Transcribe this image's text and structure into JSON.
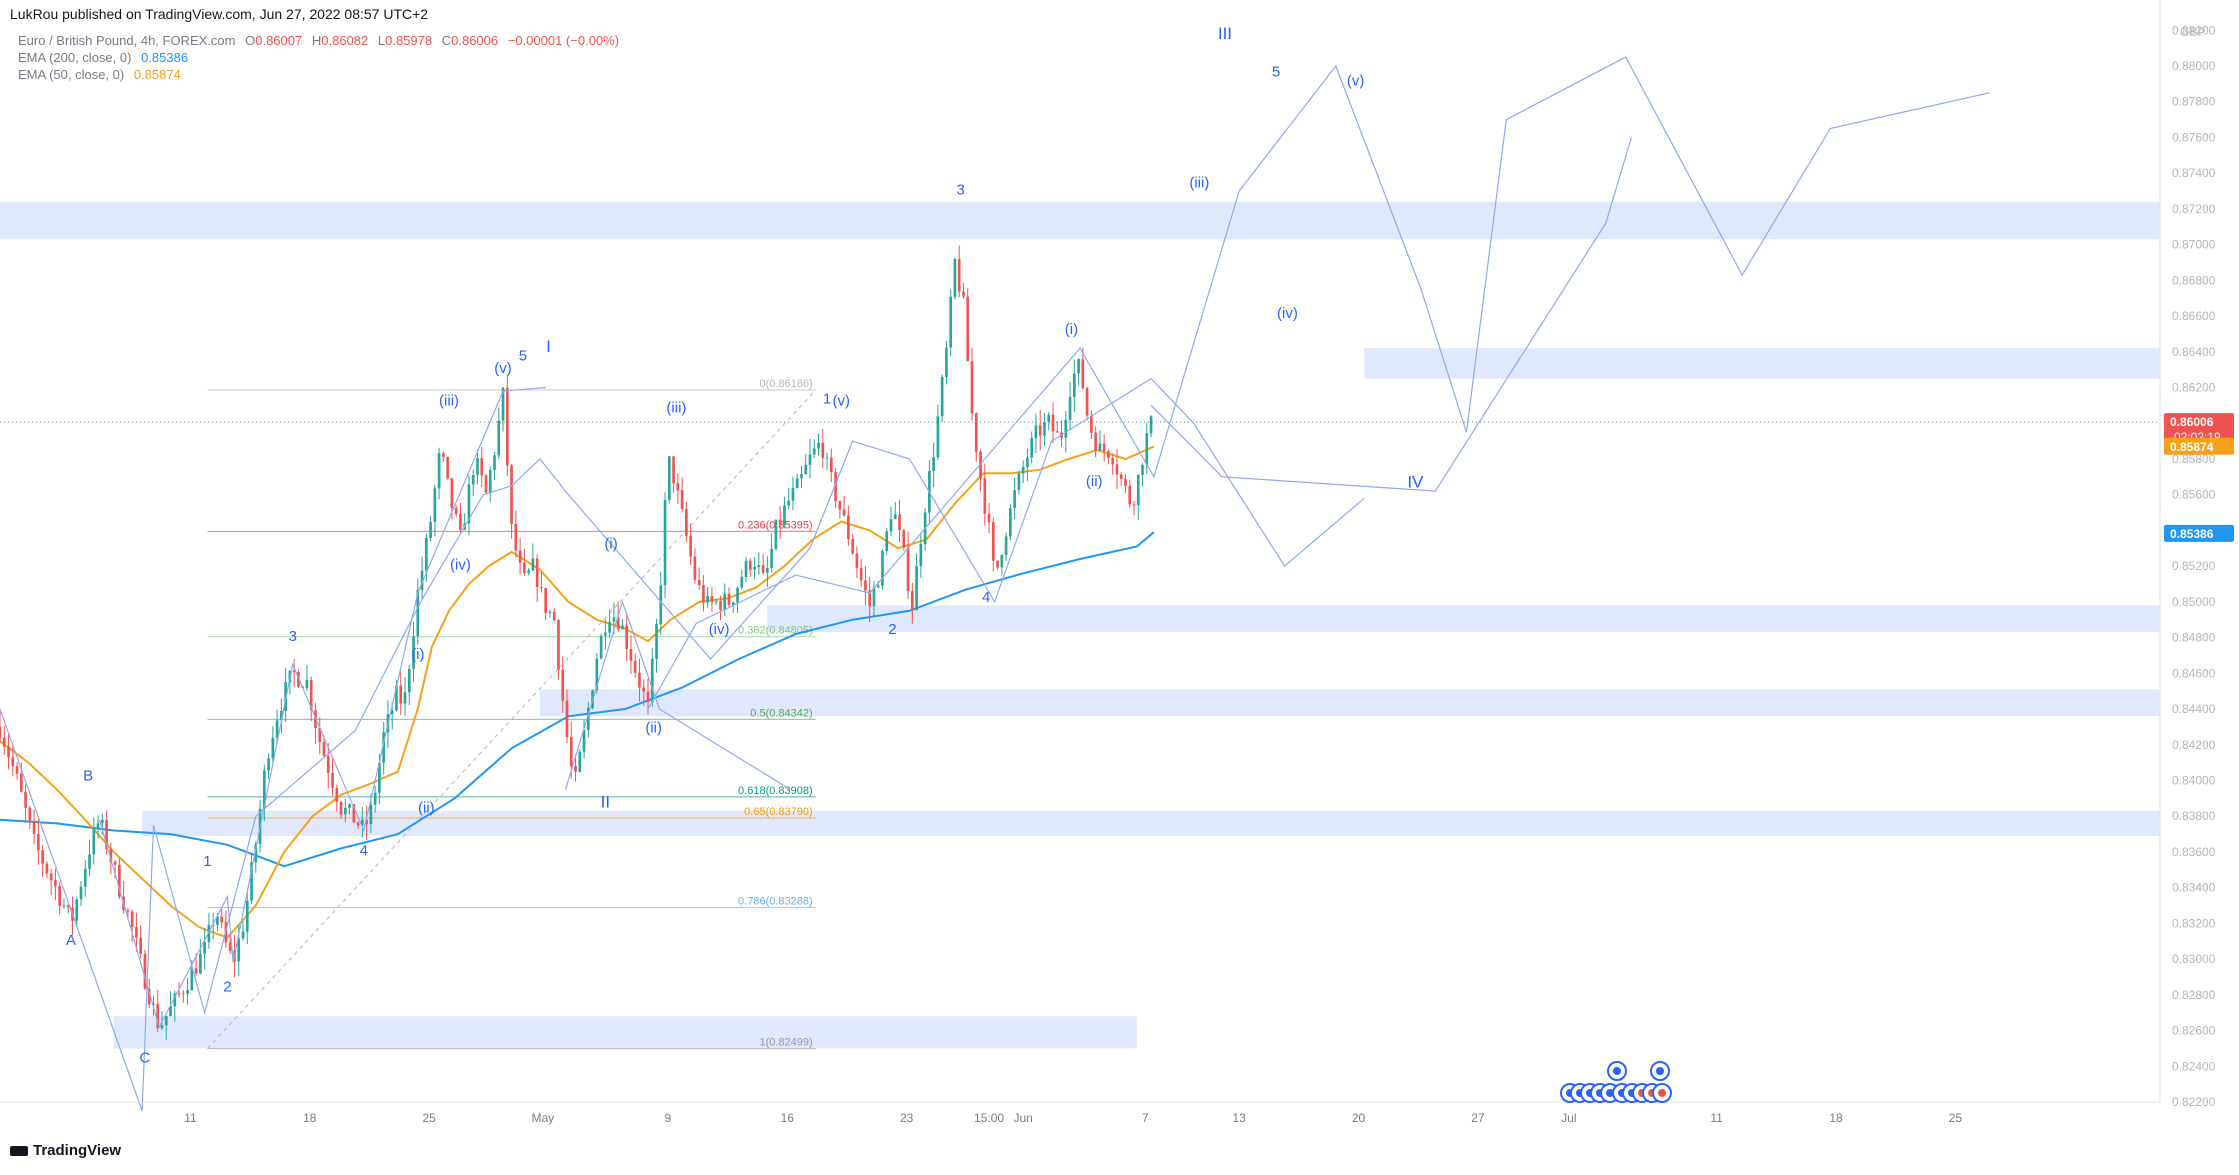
{
  "header": {
    "published_by": "LukRou published on TradingView.com, Jun 27, 2022 08:57 UTC+2"
  },
  "legend": {
    "symbol_line": "Euro / British Pound, 4h, FOREX.com",
    "ohlc": {
      "o_label": "O",
      "o": "0.86007",
      "h_label": "H",
      "h": "0.86082",
      "l_label": "L",
      "l": "0.85978",
      "c_label": "C",
      "c": "0.86006",
      "chg": "−0.00001 (−0.00%)"
    },
    "ema200": {
      "label": "EMA (200, close, 0)",
      "value": "0.85386",
      "color": "#2196f3"
    },
    "ema50": {
      "label": "EMA (50, close, 0)",
      "value": "0.85874",
      "color": "#f7a11a"
    }
  },
  "footer": {
    "logo_text": "TradingView"
  },
  "colors": {
    "up": "#26a69a",
    "down": "#ef5350",
    "zone": "#c7d5fb",
    "wave": "#8fa8f0",
    "label": "#2962ff",
    "ema200": "#2196f3",
    "ema50": "#f7a11a",
    "axis_text": "#b2b5be"
  },
  "chart_data": {
    "type": "candlestick",
    "currency": "GBP",
    "y_range": [
      0.822,
      0.8828
    ],
    "y_ticks": [
      "0.88200",
      "0.88000",
      "0.87800",
      "0.87600",
      "0.87400",
      "0.87200",
      "0.87000",
      "0.86800",
      "0.86600",
      "0.86400",
      "0.86200",
      "0.86000",
      "0.85800",
      "0.85600",
      "0.85400",
      "0.85200",
      "0.85000",
      "0.84800",
      "0.84600",
      "0.84400",
      "0.84200",
      "0.84000",
      "0.83800",
      "0.83600",
      "0.83400",
      "0.83200",
      "0.83000",
      "0.82800",
      "0.82600",
      "0.82400",
      "0.82200"
    ],
    "x_ticks": [
      {
        "label": "11",
        "t": 67
      },
      {
        "label": "18",
        "t": 109
      },
      {
        "label": "25",
        "t": 151
      },
      {
        "label": "May",
        "t": 191
      },
      {
        "label": "9",
        "t": 235
      },
      {
        "label": "16",
        "t": 277
      },
      {
        "label": "23",
        "t": 319
      },
      {
        "label": "15:00",
        "t": 348
      },
      {
        "label": "Jun",
        "t": 360
      },
      {
        "label": "7",
        "t": 403
      },
      {
        "label": "13",
        "t": 436
      },
      {
        "label": "20",
        "t": 478
      },
      {
        "label": "27",
        "t": 520
      },
      {
        "label": "Jul",
        "t": 552
      },
      {
        "label": "11",
        "t": 604
      },
      {
        "label": "18",
        "t": 646
      },
      {
        "label": "25",
        "t": 688
      }
    ],
    "price_tags": [
      {
        "value": "0.86006",
        "sub": "02:02:19",
        "bg": "#ef5350",
        "y": 0.86006
      },
      {
        "value": "0.85874",
        "bg": "#f7a11a",
        "y": 0.85874
      },
      {
        "value": "0.85386",
        "bg": "#2196f3",
        "y": 0.85386
      }
    ],
    "current_price": 0.86006,
    "waypoints": [
      [
        0,
        0.843
      ],
      [
        6,
        0.84
      ],
      [
        12,
        0.8365
      ],
      [
        18,
        0.8345
      ],
      [
        22,
        0.8332
      ],
      [
        25,
        0.832
      ],
      [
        28,
        0.834
      ],
      [
        32,
        0.8365
      ],
      [
        35,
        0.8378
      ],
      [
        38,
        0.8362
      ],
      [
        42,
        0.834
      ],
      [
        46,
        0.832
      ],
      [
        50,
        0.8295
      ],
      [
        54,
        0.8272
      ],
      [
        56,
        0.8262
      ],
      [
        60,
        0.8272
      ],
      [
        66,
        0.8288
      ],
      [
        72,
        0.8305
      ],
      [
        76,
        0.8328
      ],
      [
        79,
        0.831
      ],
      [
        82,
        0.8298
      ],
      [
        86,
        0.8322
      ],
      [
        90,
        0.8365
      ],
      [
        94,
        0.8415
      ],
      [
        98,
        0.844
      ],
      [
        103,
        0.846
      ],
      [
        108,
        0.8455
      ],
      [
        112,
        0.8425
      ],
      [
        116,
        0.8405
      ],
      [
        120,
        0.8385
      ],
      [
        125,
        0.8378
      ],
      [
        128,
        0.8372
      ],
      [
        131,
        0.8385
      ],
      [
        135,
        0.8425
      ],
      [
        140,
        0.845
      ],
      [
        142,
        0.844
      ],
      [
        147,
        0.8505
      ],
      [
        151,
        0.854
      ],
      [
        155,
        0.8585
      ],
      [
        158,
        0.856
      ],
      [
        162,
        0.8535
      ],
      [
        167,
        0.858
      ],
      [
        171,
        0.856
      ],
      [
        174,
        0.8585
      ],
      [
        177,
        0.8615
      ],
      [
        180,
        0.854
      ],
      [
        184,
        0.851
      ],
      [
        188,
        0.852
      ],
      [
        191,
        0.85
      ],
      [
        195,
        0.849
      ],
      [
        199,
        0.843
      ],
      [
        202,
        0.8395
      ],
      [
        206,
        0.843
      ],
      [
        210,
        0.847
      ],
      [
        214,
        0.8495
      ],
      [
        218,
        0.849
      ],
      [
        222,
        0.847
      ],
      [
        226,
        0.845
      ],
      [
        228,
        0.844
      ],
      [
        232,
        0.85
      ],
      [
        235,
        0.858
      ],
      [
        237,
        0.857
      ],
      [
        241,
        0.854
      ],
      [
        245,
        0.851
      ],
      [
        249,
        0.8498
      ],
      [
        253,
        0.85
      ],
      [
        257,
        0.85
      ],
      [
        261,
        0.8515
      ],
      [
        265,
        0.8525
      ],
      [
        269,
        0.851
      ],
      [
        273,
        0.854
      ],
      [
        277,
        0.8555
      ],
      [
        281,
        0.8565
      ],
      [
        285,
        0.858
      ],
      [
        289,
        0.859
      ],
      [
        291,
        0.8575
      ],
      [
        295,
        0.8555
      ],
      [
        299,
        0.8535
      ],
      [
        303,
        0.8512
      ],
      [
        306,
        0.8498
      ],
      [
        310,
        0.852
      ],
      [
        314,
        0.8555
      ],
      [
        318,
        0.8525
      ],
      [
        321,
        0.8498
      ],
      [
        325,
        0.855
      ],
      [
        329,
        0.859
      ],
      [
        333,
        0.864
      ],
      [
        336,
        0.869
      ],
      [
        339,
        0.8665
      ],
      [
        342,
        0.8605
      ],
      [
        345,
        0.857
      ],
      [
        348,
        0.854
      ],
      [
        350,
        0.8512
      ],
      [
        353,
        0.8535
      ],
      [
        357,
        0.856
      ],
      [
        361,
        0.858
      ],
      [
        365,
        0.8595
      ],
      [
        369,
        0.86
      ],
      [
        373,
        0.859
      ],
      [
        377,
        0.8625
      ],
      [
        380,
        0.8632
      ],
      [
        383,
        0.86
      ],
      [
        387,
        0.8585
      ],
      [
        391,
        0.8585
      ],
      [
        394,
        0.857
      ],
      [
        398,
        0.8555
      ],
      [
        400,
        0.8565
      ],
      [
        403,
        0.859
      ],
      [
        406,
        0.8603
      ]
    ],
    "ema50_points": [
      [
        0,
        0.8422
      ],
      [
        10,
        0.841
      ],
      [
        20,
        0.8395
      ],
      [
        30,
        0.8378
      ],
      [
        40,
        0.836
      ],
      [
        50,
        0.8345
      ],
      [
        60,
        0.833
      ],
      [
        70,
        0.8318
      ],
      [
        80,
        0.8312
      ],
      [
        90,
        0.833
      ],
      [
        100,
        0.836
      ],
      [
        110,
        0.838
      ],
      [
        120,
        0.8392
      ],
      [
        130,
        0.8398
      ],
      [
        140,
        0.8405
      ],
      [
        147,
        0.844
      ],
      [
        152,
        0.8475
      ],
      [
        158,
        0.8495
      ],
      [
        165,
        0.851
      ],
      [
        172,
        0.852
      ],
      [
        180,
        0.8528
      ],
      [
        190,
        0.8518
      ],
      [
        200,
        0.85
      ],
      [
        210,
        0.849
      ],
      [
        220,
        0.8485
      ],
      [
        228,
        0.8478
      ],
      [
        236,
        0.849
      ],
      [
        246,
        0.85
      ],
      [
        256,
        0.8502
      ],
      [
        266,
        0.8508
      ],
      [
        276,
        0.852
      ],
      [
        286,
        0.8535
      ],
      [
        296,
        0.8545
      ],
      [
        306,
        0.854
      ],
      [
        316,
        0.853
      ],
      [
        326,
        0.8535
      ],
      [
        336,
        0.8555
      ],
      [
        346,
        0.8572
      ],
      [
        356,
        0.8572
      ],
      [
        366,
        0.8574
      ],
      [
        376,
        0.858
      ],
      [
        386,
        0.8585
      ],
      [
        396,
        0.858
      ],
      [
        406,
        0.8587
      ]
    ],
    "ema200_points": [
      [
        0,
        0.8378
      ],
      [
        20,
        0.8376
      ],
      [
        40,
        0.8372
      ],
      [
        60,
        0.837
      ],
      [
        80,
        0.8364
      ],
      [
        100,
        0.8352
      ],
      [
        120,
        0.8362
      ],
      [
        140,
        0.837
      ],
      [
        160,
        0.839
      ],
      [
        180,
        0.8418
      ],
      [
        200,
        0.8436
      ],
      [
        220,
        0.844
      ],
      [
        240,
        0.8452
      ],
      [
        260,
        0.8468
      ],
      [
        280,
        0.8482
      ],
      [
        300,
        0.849
      ],
      [
        320,
        0.8495
      ],
      [
        340,
        0.8507
      ],
      [
        360,
        0.8516
      ],
      [
        380,
        0.8524
      ],
      [
        400,
        0.8531
      ],
      [
        406,
        0.8539
      ]
    ],
    "zones": [
      {
        "t0": -10,
        "t1": 760,
        "lo": 0.8703,
        "hi": 0.8724
      },
      {
        "t0": 480,
        "t1": 760,
        "lo": 0.8625,
        "hi": 0.8642
      },
      {
        "t0": 270,
        "t1": 760,
        "lo": 0.8483,
        "hi": 0.8498
      },
      {
        "t0": 190,
        "t1": 760,
        "lo": 0.8436,
        "hi": 0.8451
      },
      {
        "t0": 50,
        "t1": 760,
        "lo": 0.8369,
        "hi": 0.8383
      },
      {
        "t0": 40,
        "t1": 400,
        "lo": 0.825,
        "hi": 0.8268
      }
    ],
    "fib": {
      "t0": 73,
      "t1": 287,
      "label_t": 287,
      "levels": [
        {
          "label": "0(0.86186)",
          "y": 0.86186,
          "color": "#b2b5be"
        },
        {
          "label": "0.236(0.85395)",
          "y": 0.85395,
          "color": "#f23645"
        },
        {
          "label": "0.382(0.84805)",
          "y": 0.84805,
          "color": "#81c784"
        },
        {
          "label": "0.5(0.84342)",
          "y": 0.84342,
          "color": "#4caf50"
        },
        {
          "label": "0.618(0.83908)",
          "y": 0.83908,
          "color": "#089981"
        },
        {
          "label": "0.65(0.83790)",
          "y": 0.8379,
          "color": "#ff9800"
        },
        {
          "label": "0.786(0.83288)",
          "y": 0.83288,
          "color": "#64b5f6"
        },
        {
          "label": "1(0.82499)",
          "y": 0.82499,
          "color": "#9598a1"
        }
      ]
    },
    "wave_lines": [
      [
        [
          35,
          0.8378
        ],
        [
          56,
          0.8262
        ],
        [
          80,
          0.8335
        ],
        [
          82,
          0.8298
        ],
        [
          103,
          0.8465
        ],
        [
          128,
          0.8372
        ],
        [
          147,
          0.8505
        ],
        [
          177,
          0.8618
        ],
        [
          192,
          0.862
        ]
      ],
      [
        [
          199,
          0.8395
        ],
        [
          219,
          0.85
        ],
        [
          232,
          0.844
        ],
        [
          278,
          0.8395
        ]
      ],
      [
        [
          228,
          0.844
        ],
        [
          245,
          0.8488
        ],
        [
          280,
          0.8515
        ],
        [
          306,
          0.8505
        ],
        [
          380,
          0.8642
        ],
        [
          406,
          0.857
        ],
        [
          436,
          0.873
        ],
        [
          470,
          0.88
        ],
        [
          500,
          0.8675
        ],
        [
          516,
          0.8595
        ],
        [
          530,
          0.877
        ],
        [
          572,
          0.8805
        ],
        [
          613,
          0.8683
        ],
        [
          644,
          0.8765
        ],
        [
          700,
          0.8785
        ]
      ],
      [
        [
          405,
          0.861
        ],
        [
          430,
          0.857
        ],
        [
          505,
          0.8562
        ],
        [
          565,
          0.8712
        ],
        [
          574,
          0.876
        ]
      ],
      [
        [
          0,
          0.844
        ],
        [
          50,
          0.8215
        ],
        [
          54,
          0.8375
        ],
        [
          72,
          0.827
        ],
        [
          90,
          0.838
        ],
        [
          125,
          0.8428
        ],
        [
          148,
          0.85
        ],
        [
          170,
          0.856
        ],
        [
          180,
          0.8565
        ],
        [
          190,
          0.858
        ],
        [
          200,
          0.856
        ],
        [
          250,
          0.8468
        ],
        [
          285,
          0.853
        ],
        [
          300,
          0.859
        ],
        [
          320,
          0.858
        ],
        [
          350,
          0.85
        ],
        [
          370,
          0.859
        ],
        [
          405,
          0.8625
        ],
        [
          420,
          0.86
        ],
        [
          452,
          0.852
        ],
        [
          480,
          0.8558
        ]
      ]
    ],
    "wave_labels": [
      {
        "text": "A",
        "t": 25,
        "y": 0.8308
      },
      {
        "text": "B",
        "t": 31,
        "y": 0.84
      },
      {
        "text": "C",
        "t": 51,
        "y": 0.8242
      },
      {
        "text": "1",
        "t": 73,
        "y": 0.8352
      },
      {
        "text": "2",
        "t": 80,
        "y": 0.8282
      },
      {
        "text": "3",
        "t": 103,
        "y": 0.8478
      },
      {
        "text": "4",
        "t": 128,
        "y": 0.8358
      },
      {
        "text": "(i)",
        "t": 147,
        "y": 0.8468
      },
      {
        "text": "(ii)",
        "t": 150,
        "y": 0.8382
      },
      {
        "text": "(iii)",
        "t": 158,
        "y": 0.861
      },
      {
        "text": "(iv)",
        "t": 162,
        "y": 0.8518
      },
      {
        "text": "(v)",
        "t": 177,
        "y": 0.8628
      },
      {
        "text": "5",
        "t": 184,
        "y": 0.8635
      },
      {
        "text": "I",
        "t": 193,
        "y": 0.864
      },
      {
        "text": "(i)",
        "t": 215,
        "y": 0.853
      },
      {
        "text": "II",
        "t": 213,
        "y": 0.8385
      },
      {
        "text": "(ii)",
        "t": 230,
        "y": 0.8427
      },
      {
        "text": "(iii)",
        "t": 238,
        "y": 0.8606
      },
      {
        "text": "(iv)",
        "t": 253,
        "y": 0.8482
      },
      {
        "text": "1",
        "t": 291,
        "y": 0.8611
      },
      {
        "text": "(v)",
        "t": 296,
        "y": 0.861
      },
      {
        "text": "2",
        "t": 314,
        "y": 0.8482
      },
      {
        "text": "3",
        "t": 338,
        "y": 0.8728
      },
      {
        "text": "4",
        "t": 347,
        "y": 0.85
      },
      {
        "text": "(i)",
        "t": 377,
        "y": 0.865
      },
      {
        "text": "(ii)",
        "t": 385,
        "y": 0.8565
      },
      {
        "text": "III",
        "t": 431,
        "y": 0.8815
      },
      {
        "text": "(iii)",
        "t": 422,
        "y": 0.8732
      },
      {
        "text": "5",
        "t": 449,
        "y": 0.8794
      },
      {
        "text": "(iv)",
        "t": 453,
        "y": 0.8659
      },
      {
        "text": "(v)",
        "t": 477,
        "y": 0.8789
      },
      {
        "text": "IV",
        "t": 498,
        "y": 0.8564
      }
    ]
  }
}
